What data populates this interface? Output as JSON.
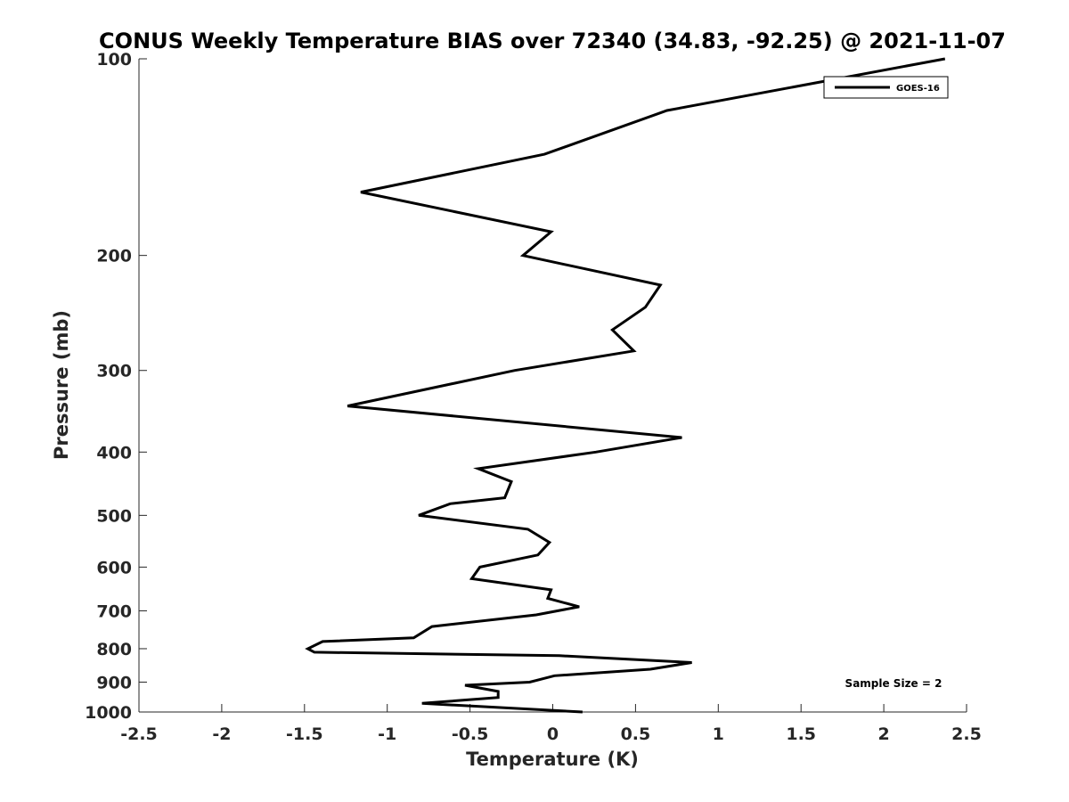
{
  "chart_data": {
    "type": "line",
    "title": "CONUS Weekly Temperature BIAS over 72340 (34.83, -92.25) @ 2021-11-07",
    "xlabel": "Temperature (K)",
    "ylabel": "Pressure (mb)",
    "xlim": [
      -2.5,
      2.5
    ],
    "ylim": [
      100,
      1000
    ],
    "yscale": "log",
    "y_reversed": true,
    "grid": false,
    "legend_position": "top-right",
    "x_ticks": [
      -2.5,
      -2,
      -1.5,
      -1,
      -0.5,
      0,
      0.5,
      1,
      1.5,
      2,
      2.5
    ],
    "x_tick_labels": [
      "-2.5",
      "-2",
      "-1.5",
      "-1",
      "-0.5",
      "0",
      "0.5",
      "1",
      "1.5",
      "2",
      "2.5"
    ],
    "y_ticks": [
      100,
      200,
      300,
      400,
      500,
      600,
      700,
      800,
      900,
      1000
    ],
    "y_tick_labels": [
      "100",
      "200",
      "300",
      "400",
      "500",
      "600",
      "700",
      "800",
      "900",
      "1000"
    ],
    "annotation": "Sample Size = 2",
    "series": [
      {
        "name": "GOES-16",
        "color": "#000000",
        "x": [
          2.37,
          0.69,
          -0.05,
          -1.16,
          -0.01,
          -0.18,
          0.65,
          0.56,
          0.36,
          0.49,
          -0.23,
          -1.24,
          0.78,
          0.26,
          -0.45,
          -0.25,
          -0.29,
          -0.62,
          -0.81,
          -0.15,
          -0.02,
          -0.09,
          -0.44,
          -0.49,
          -0.01,
          -0.03,
          0.16,
          -0.1,
          -0.73,
          -0.84,
          -1.39,
          -1.48,
          -1.44,
          0.04,
          0.84,
          0.59,
          0.01,
          -0.14,
          -0.53,
          -0.33,
          -0.33,
          -0.79,
          0.18
        ],
        "y": [
          100,
          120,
          140,
          160,
          184,
          200,
          222,
          240,
          260,
          280,
          300,
          340,
          380,
          400,
          424,
          444,
          470,
          480,
          500,
          525,
          550,
          575,
          600,
          625,
          650,
          670,
          690,
          710,
          740,
          770,
          780,
          800,
          810,
          820,
          840,
          860,
          880,
          900,
          910,
          930,
          950,
          970,
          1000
        ]
      }
    ]
  }
}
